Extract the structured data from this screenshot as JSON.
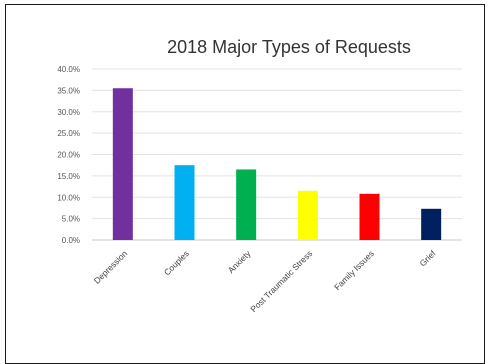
{
  "chart_data": {
    "type": "bar",
    "title": "2018 Major Types of Requests",
    "categories": [
      "Depression",
      "Couples",
      "Anxiety",
      "Post Traumatic Stress",
      "Family Issues",
      "Grief"
    ],
    "values": [
      35.5,
      17.5,
      16.5,
      11.5,
      10.8,
      7.3
    ],
    "colors": [
      "#7030a0",
      "#00b0f0",
      "#00b050",
      "#ffff00",
      "#ff0000",
      "#002060"
    ],
    "ylim": [
      0,
      40
    ],
    "yticks": [
      "0.0%",
      "5.0%",
      "10.0%",
      "15.0%",
      "20.0%",
      "25.0%",
      "30.0%",
      "35.0%",
      "40.0%"
    ],
    "grid": true,
    "legend": "none"
  }
}
